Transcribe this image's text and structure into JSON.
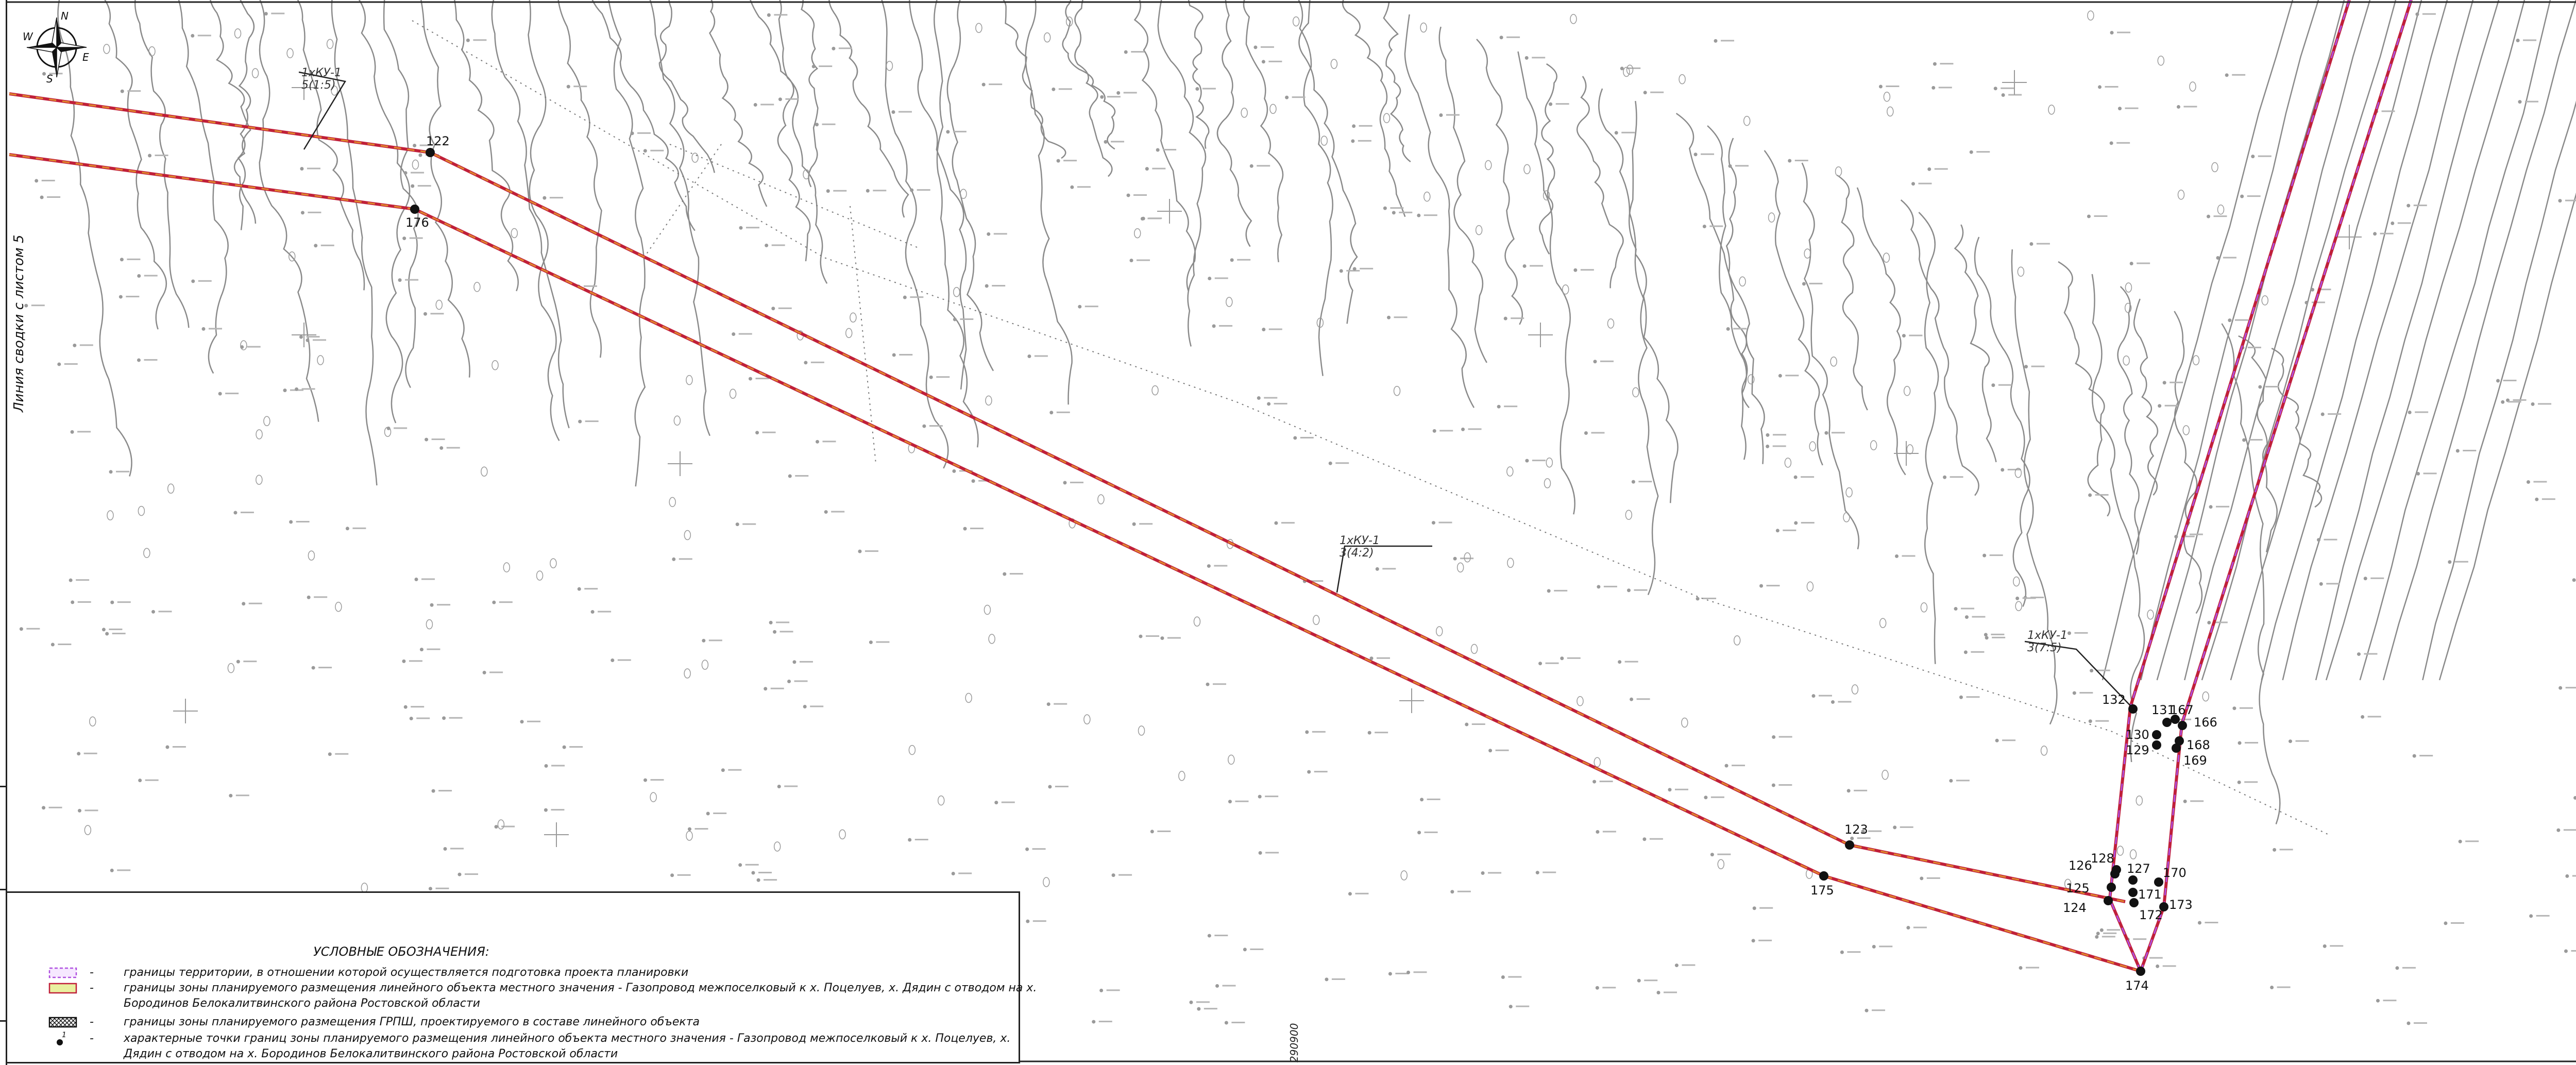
{
  "compass": {
    "n": "N",
    "s": "S",
    "w": "W",
    "e": "E"
  },
  "side_label": "Линия сводки с листом 5",
  "coord_label": "290900",
  "grpsh_label": "ГРПШ",
  "callouts": [
    {
      "id": "callout-top",
      "line1": "1хКУ-1",
      "line2": "5(1:5)"
    },
    {
      "id": "callout-mid",
      "line1": "1хКУ-1",
      "line2": "3(4:2)"
    },
    {
      "id": "callout-right",
      "line1": "1хКУ-1",
      "line2": "3(7:5)"
    }
  ],
  "points": [
    {
      "label": "122"
    },
    {
      "label": "176"
    },
    {
      "label": "123"
    },
    {
      "label": "175"
    },
    {
      "label": "174"
    },
    {
      "label": "124"
    },
    {
      "label": "125"
    },
    {
      "label": "126"
    },
    {
      "label": "127"
    },
    {
      "label": "128"
    },
    {
      "label": "170"
    },
    {
      "label": "171"
    },
    {
      "label": "172"
    },
    {
      "label": "173"
    },
    {
      "label": "129"
    },
    {
      "label": "130"
    },
    {
      "label": "131"
    },
    {
      "label": "132"
    },
    {
      "label": "166"
    },
    {
      "label": "167"
    },
    {
      "label": "168"
    },
    {
      "label": "169"
    }
  ],
  "legend": {
    "title": "УСЛОВНЫЕ ОБОЗНАЧЕНИЯ:",
    "items": [
      {
        "dash": "-",
        "text": "границы территории, в отношении которой осуществляется подготовка проекта планировки"
      },
      {
        "dash": "-",
        "text": "границы зоны планируемого размещения линейного объекта местного значения - Газопровод межпоселковый к х. Поцелуев, х. Дядин с отводом на х. Бородинов Белокалитвинского района Ростовской области"
      },
      {
        "dash": "-",
        "text": "границы зоны планируемого размещения ГРПШ, проектируемого в составе линейного объекта"
      },
      {
        "dash": "-",
        "text": "характерные точки границ зоны планируемого размещения линейного объекта местного значения - Газопровод межпоселковый к х. Поцелуев, х. Дядин с отводом на х. Бородинов Белокалитвинского района Ростовской области",
        "symbol_label": "1"
      }
    ]
  },
  "colors": {
    "corridor_red": "#c0203a",
    "corridor_orange": "#e08a2c",
    "territory_purple": "#b050e0",
    "zone_green": "#e9f0a0"
  }
}
